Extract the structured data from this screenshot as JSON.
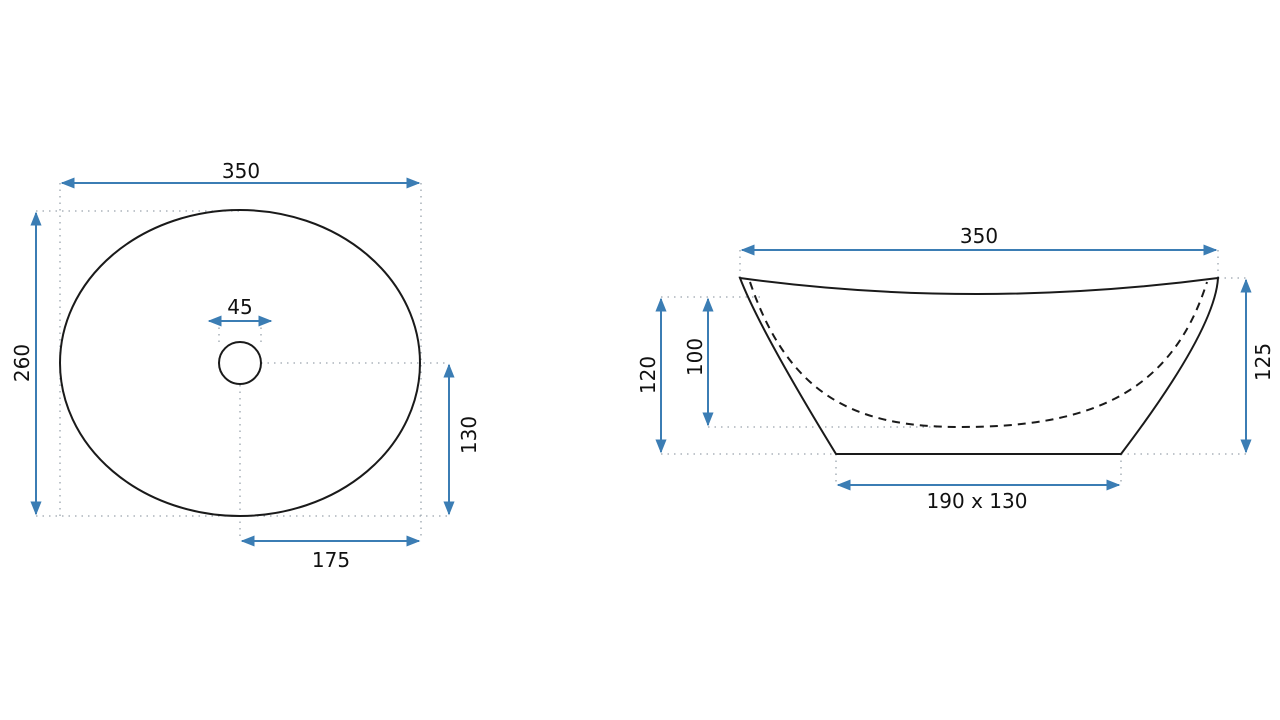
{
  "colors": {
    "dimension_arrow": "#3b7db4",
    "outline": "#1a1a1a",
    "extension_line": "#9aa4ad"
  },
  "top_view": {
    "width_label": "350",
    "depth_label": "260",
    "drain_label": "45",
    "drain_offset_y_label": "130",
    "drain_offset_x_label": "175"
  },
  "side_view": {
    "width_label": "350",
    "height_low_label": "120",
    "inner_depth_label": "100",
    "height_high_label": "125",
    "base_label": "190 x 130"
  }
}
